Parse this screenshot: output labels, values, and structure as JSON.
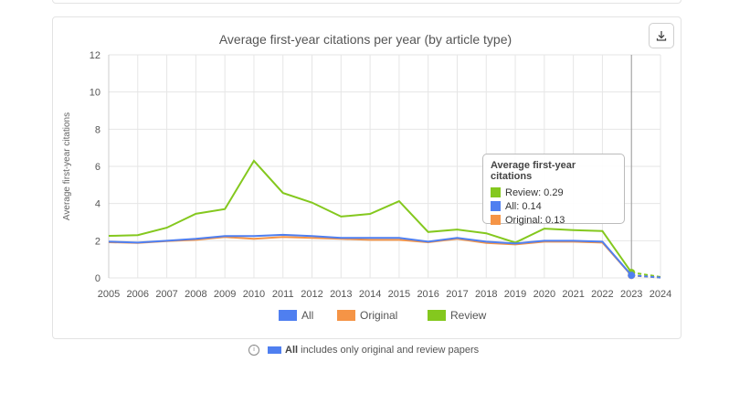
{
  "chart_data": {
    "type": "line",
    "title": "Average first-year citations per year (by article type)",
    "xlabel": "",
    "ylabel": "Average first-year citations",
    "ylim": [
      0,
      12
    ],
    "yticks": [
      0,
      2,
      4,
      6,
      8,
      10,
      12
    ],
    "grid": true,
    "legend": "bottom",
    "categories": [
      "2005",
      "2006",
      "2007",
      "2008",
      "2009",
      "2010",
      "2011",
      "2012",
      "2013",
      "2014",
      "2015",
      "2016",
      "2017",
      "2018",
      "2019",
      "2020",
      "2021",
      "2022",
      "2023",
      "2024"
    ],
    "series": [
      {
        "name": "All",
        "color": "#4f7ff0",
        "values": [
          1.95,
          1.9,
          2.0,
          2.1,
          2.25,
          2.25,
          2.32,
          2.25,
          2.15,
          2.15,
          2.15,
          1.95,
          2.15,
          1.95,
          1.85,
          2.0,
          2.0,
          1.95,
          0.14,
          0.02
        ]
      },
      {
        "name": "Original",
        "color": "#f59446",
        "values": [
          1.92,
          1.88,
          1.98,
          2.05,
          2.2,
          2.1,
          2.2,
          2.15,
          2.1,
          2.05,
          2.05,
          1.92,
          2.1,
          1.88,
          1.8,
          1.95,
          1.95,
          1.9,
          0.13,
          0.02
        ]
      },
      {
        "name": "Review",
        "color": "#84c81e",
        "values": [
          2.26,
          2.3,
          2.7,
          3.45,
          3.7,
          6.3,
          4.57,
          4.05,
          3.3,
          3.44,
          4.13,
          2.47,
          2.6,
          2.4,
          1.9,
          2.65,
          2.57,
          2.52,
          0.29,
          0.05
        ]
      }
    ],
    "partial_year": "2024",
    "tooltip": {
      "title": "Average first-year citations",
      "year": "2023",
      "rows": [
        {
          "label": "Review: 0.29",
          "color": "#84c81e"
        },
        {
          "label": "All: 0.14",
          "color": "#4f7ff0"
        },
        {
          "label": "Original: 0.13",
          "color": "#f59446"
        }
      ]
    }
  },
  "download_icon": "download-icon",
  "note": {
    "bold": "All",
    "text": " includes only original and review papers",
    "icon": "info-icon"
  }
}
